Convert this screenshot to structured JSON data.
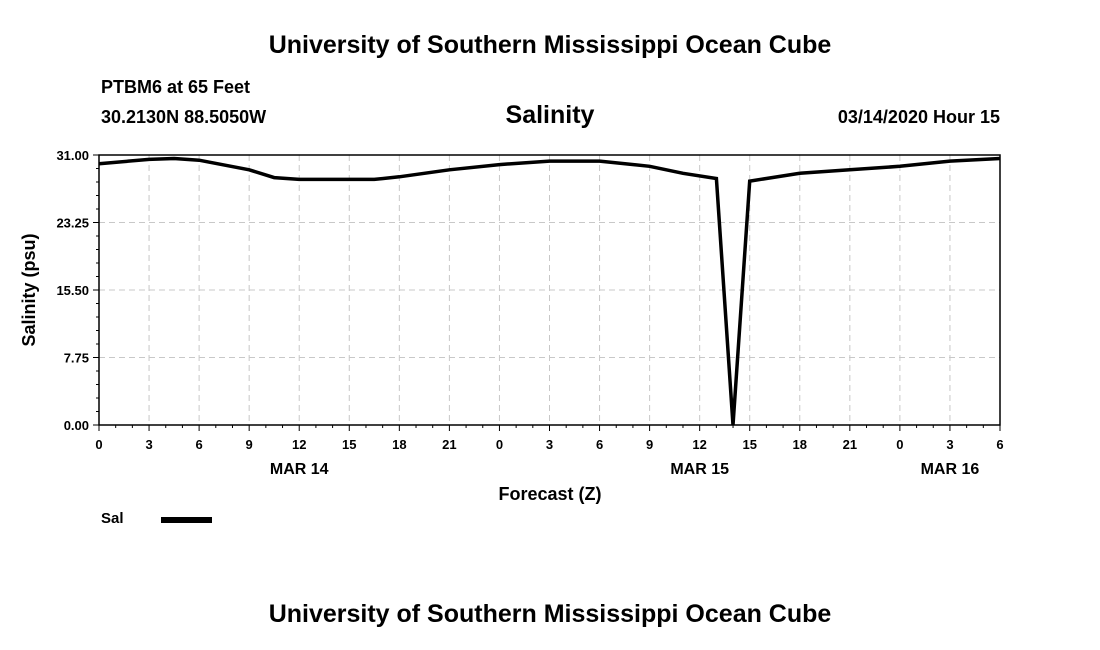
{
  "header": {
    "title": "University of Southern Mississippi Ocean Cube",
    "station": "PTBM6 at 65 Feet",
    "coords": "30.2130N 88.5050W",
    "datetime": "03/14/2020 Hour 15"
  },
  "footer": {
    "title": "University of Southern Mississippi Ocean Cube"
  },
  "legend": {
    "label": "Sal",
    "color": "#000000"
  },
  "chart_data": {
    "type": "line",
    "title": "Salinity",
    "xlabel": "Forecast (Z)",
    "ylabel": "Salinity (psu)",
    "xlim": [
      0,
      54
    ],
    "ylim": [
      0,
      31
    ],
    "yticks": [
      "0.00",
      "7.75",
      "15.50",
      "23.25",
      "31.00"
    ],
    "xticks": [
      "0",
      "3",
      "6",
      "9",
      "12",
      "15",
      "18",
      "21",
      "0",
      "3",
      "6",
      "9",
      "12",
      "15",
      "18",
      "21",
      "0",
      "3",
      "6"
    ],
    "date_labels": [
      {
        "label": "MAR 14",
        "hour": 12
      },
      {
        "label": "MAR 15",
        "hour": 36
      },
      {
        "label": "MAR 16",
        "hour": 51
      }
    ],
    "grid": true,
    "series": [
      {
        "name": "Sal",
        "color": "#000000",
        "x": [
          0,
          3,
          4.5,
          6,
          9,
          10.5,
          12,
          15,
          16.5,
          18,
          21,
          24,
          27,
          30,
          33,
          35,
          37,
          38,
          39,
          40,
          42,
          45,
          48,
          51,
          54
        ],
        "y": [
          30.0,
          30.5,
          30.6,
          30.4,
          29.3,
          28.4,
          28.2,
          28.2,
          28.2,
          28.5,
          29.3,
          29.9,
          30.3,
          30.3,
          29.7,
          28.9,
          28.3,
          0.0,
          28.0,
          28.3,
          28.9,
          29.3,
          29.7,
          30.3,
          30.6
        ]
      }
    ]
  }
}
